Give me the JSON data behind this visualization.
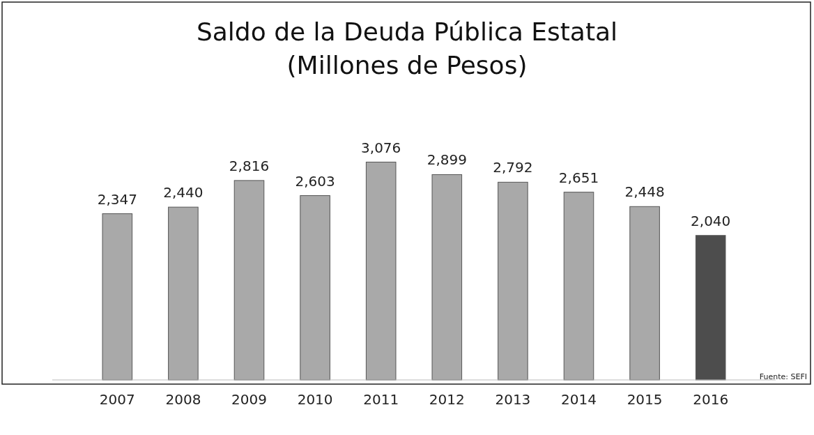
{
  "chart_data": {
    "type": "bar",
    "title": "Saldo de la Deuda Pública Estatal\n(Millones de Pesos)",
    "categories": [
      "2007",
      "2008",
      "2009",
      "2010",
      "2011",
      "2012",
      "2013",
      "2014",
      "2015",
      "2016"
    ],
    "values": [
      2347,
      2440,
      2816,
      2603,
      3076,
      2899,
      2792,
      2651,
      2448,
      2040
    ],
    "colors": [
      "#a9a9a9",
      "#a9a9a9",
      "#a9a9a9",
      "#a9a9a9",
      "#a9a9a9",
      "#a9a9a9",
      "#a9a9a9",
      "#a9a9a9",
      "#a9a9a9",
      "#4d4d4d"
    ],
    "value_labels": [
      "2,347",
      "2,440",
      "2,816",
      "2,603",
      "3,076",
      "2,899",
      "2,792",
      "2,651",
      "2,448",
      "2,040"
    ],
    "annotations": [
      "Fuente: SEFI"
    ]
  }
}
